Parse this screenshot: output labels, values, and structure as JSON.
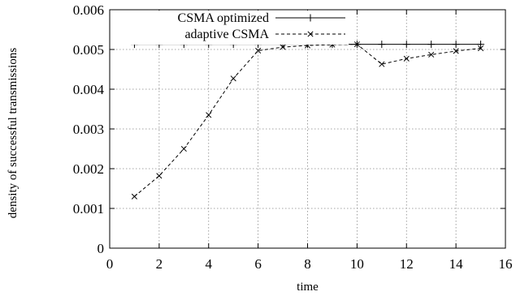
{
  "chart_data": {
    "type": "line",
    "title": "",
    "xlabel": "time",
    "ylabel": "density of successful transmissions",
    "xlim": [
      0,
      16
    ],
    "ylim": [
      0,
      0.006
    ],
    "x_ticks": [
      "0",
      "2",
      "4",
      "6",
      "8",
      "10",
      "12",
      "14",
      "16"
    ],
    "y_ticks": [
      "0",
      "0.001",
      "0.002",
      "0.003",
      "0.004",
      "0.005",
      "0.006"
    ],
    "grid": true,
    "legend_position": "top-left",
    "series": [
      {
        "name": "CSMA optimized",
        "style": "solid",
        "marker": "plus",
        "color": "#000000",
        "x": [
          1,
          2,
          3,
          4,
          5,
          6,
          7,
          8,
          9,
          10,
          11,
          12,
          13,
          14,
          15
        ],
        "y": [
          0.00513,
          0.00513,
          0.00513,
          0.00513,
          0.00513,
          0.00513,
          0.00513,
          0.00513,
          0.00513,
          0.00513,
          0.00513,
          0.00513,
          0.00513,
          0.00513,
          0.00513
        ]
      },
      {
        "name": "adaptive CSMA",
        "style": "dashed",
        "marker": "cross",
        "color": "#000000",
        "x": [
          1,
          2,
          3,
          4,
          5,
          6,
          7,
          8,
          9,
          10,
          11,
          12,
          13,
          14,
          15
        ],
        "y": [
          0.0013,
          0.00182,
          0.0025,
          0.00335,
          0.00427,
          0.00497,
          0.00506,
          0.0051,
          0.00512,
          0.00513,
          0.00463,
          0.00477,
          0.00487,
          0.00496,
          0.00503
        ]
      }
    ]
  }
}
